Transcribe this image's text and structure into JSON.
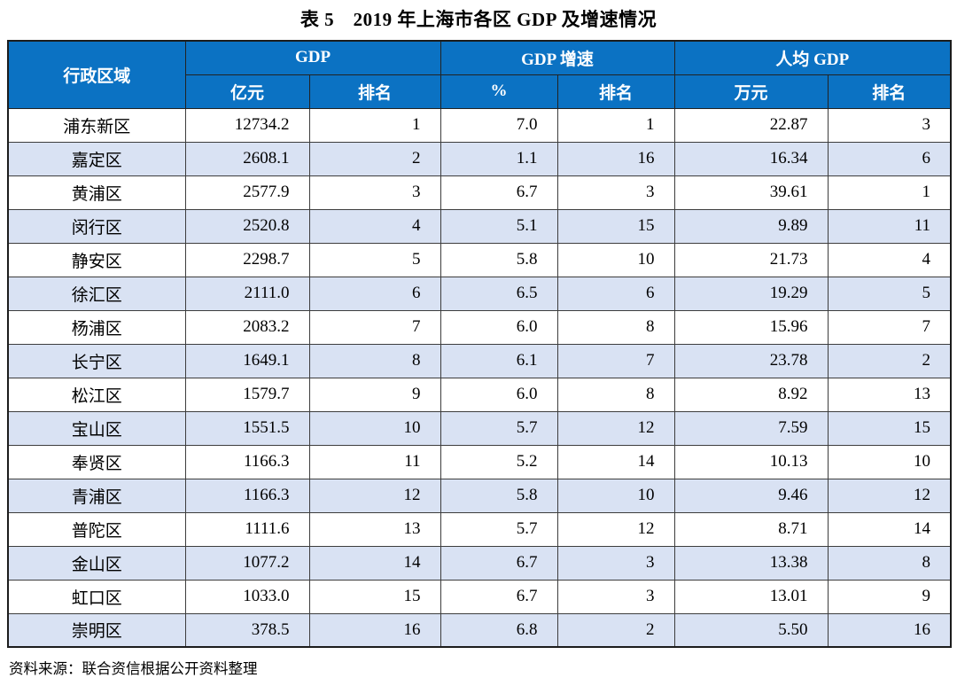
{
  "title": "表 5　2019 年上海市各区 GDP 及增速情况",
  "table": {
    "header": {
      "region": "行政区域",
      "gdp_group": "GDP",
      "growth_group": "GDP 增速",
      "per_capita_group": "人均 GDP",
      "gdp_unit": "亿元",
      "gdp_rank": "排名",
      "growth_unit": "%",
      "growth_rank": "排名",
      "per_capita_unit": "万元",
      "per_capita_rank": "排名"
    },
    "rows": [
      {
        "district": "浦东新区",
        "gdp": "12734.2",
        "gdp_rank": "1",
        "growth": "7.0",
        "growth_rank": "1",
        "per_capita": "22.87",
        "per_capita_rank": "3"
      },
      {
        "district": "嘉定区",
        "gdp": "2608.1",
        "gdp_rank": "2",
        "growth": "1.1",
        "growth_rank": "16",
        "per_capita": "16.34",
        "per_capita_rank": "6"
      },
      {
        "district": "黄浦区",
        "gdp": "2577.9",
        "gdp_rank": "3",
        "growth": "6.7",
        "growth_rank": "3",
        "per_capita": "39.61",
        "per_capita_rank": "1"
      },
      {
        "district": "闵行区",
        "gdp": "2520.8",
        "gdp_rank": "4",
        "growth": "5.1",
        "growth_rank": "15",
        "per_capita": "9.89",
        "per_capita_rank": "11"
      },
      {
        "district": "静安区",
        "gdp": "2298.7",
        "gdp_rank": "5",
        "growth": "5.8",
        "growth_rank": "10",
        "per_capita": "21.73",
        "per_capita_rank": "4"
      },
      {
        "district": "徐汇区",
        "gdp": "2111.0",
        "gdp_rank": "6",
        "growth": "6.5",
        "growth_rank": "6",
        "per_capita": "19.29",
        "per_capita_rank": "5"
      },
      {
        "district": "杨浦区",
        "gdp": "2083.2",
        "gdp_rank": "7",
        "growth": "6.0",
        "growth_rank": "8",
        "per_capita": "15.96",
        "per_capita_rank": "7"
      },
      {
        "district": "长宁区",
        "gdp": "1649.1",
        "gdp_rank": "8",
        "growth": "6.1",
        "growth_rank": "7",
        "per_capita": "23.78",
        "per_capita_rank": "2"
      },
      {
        "district": "松江区",
        "gdp": "1579.7",
        "gdp_rank": "9",
        "growth": "6.0",
        "growth_rank": "8",
        "per_capita": "8.92",
        "per_capita_rank": "13"
      },
      {
        "district": "宝山区",
        "gdp": "1551.5",
        "gdp_rank": "10",
        "growth": "5.7",
        "growth_rank": "12",
        "per_capita": "7.59",
        "per_capita_rank": "15"
      },
      {
        "district": "奉贤区",
        "gdp": "1166.3",
        "gdp_rank": "11",
        "growth": "5.2",
        "growth_rank": "14",
        "per_capita": "10.13",
        "per_capita_rank": "10"
      },
      {
        "district": "青浦区",
        "gdp": "1166.3",
        "gdp_rank": "12",
        "growth": "5.8",
        "growth_rank": "10",
        "per_capita": "9.46",
        "per_capita_rank": "12"
      },
      {
        "district": "普陀区",
        "gdp": "1111.6",
        "gdp_rank": "13",
        "growth": "5.7",
        "growth_rank": "12",
        "per_capita": "8.71",
        "per_capita_rank": "14"
      },
      {
        "district": "金山区",
        "gdp": "1077.2",
        "gdp_rank": "14",
        "growth": "6.7",
        "growth_rank": "3",
        "per_capita": "13.38",
        "per_capita_rank": "8"
      },
      {
        "district": "虹口区",
        "gdp": "1033.0",
        "gdp_rank": "15",
        "growth": "6.7",
        "growth_rank": "3",
        "per_capita": "13.01",
        "per_capita_rank": "9"
      },
      {
        "district": "崇明区",
        "gdp": "378.5",
        "gdp_rank": "16",
        "growth": "6.8",
        "growth_rank": "2",
        "per_capita": "5.50",
        "per_capita_rank": "16"
      }
    ]
  },
  "footer": {
    "source": "资料来源：联合资信根据公开资料整理"
  },
  "colors": {
    "header_bg": "#0B72C3",
    "header_text": "#FFFFFF",
    "alt_row_bg": "#D9E2F3",
    "row_bg": "#FFFFFF",
    "border": "#3D3D3D",
    "outer_border": "#1C1C1C",
    "text": "#000000"
  }
}
